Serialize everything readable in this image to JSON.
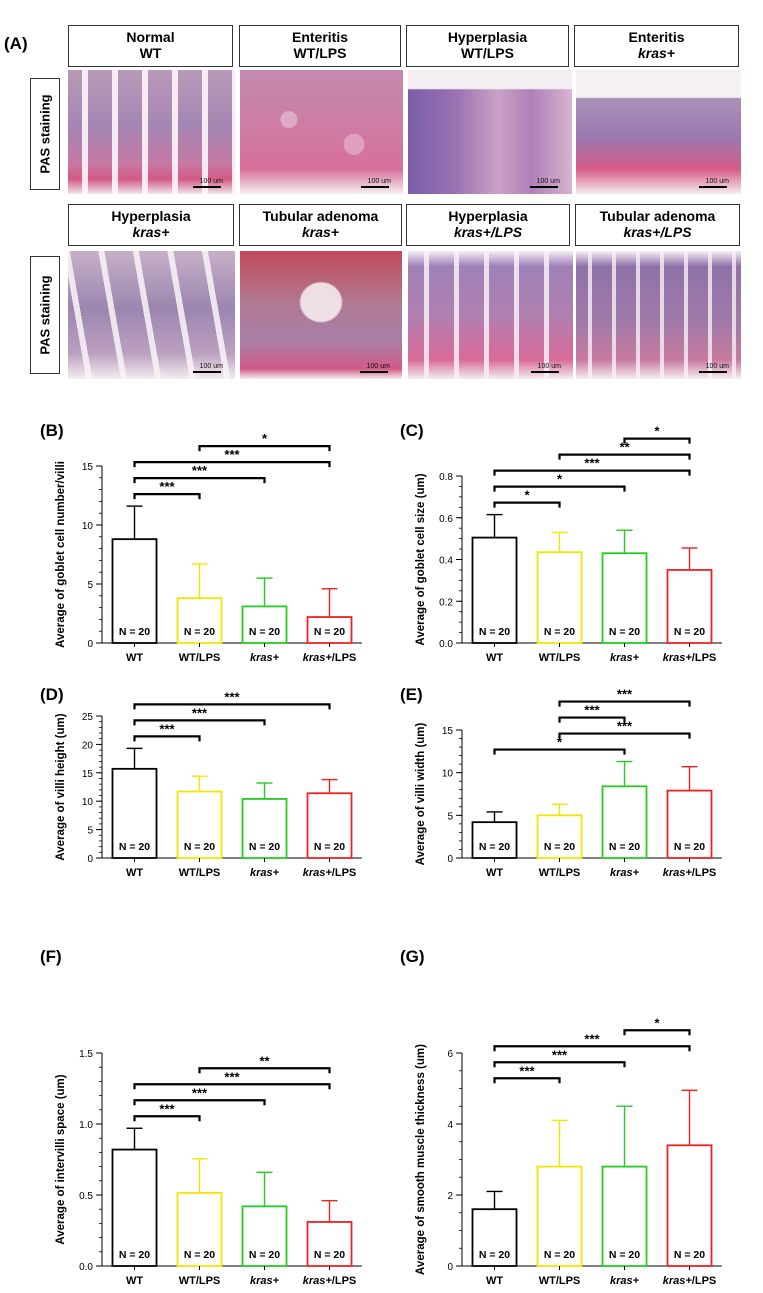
{
  "panel_a": {
    "letter": "(A)",
    "row_label": "PAS staining",
    "row1": [
      {
        "line1": "Normal",
        "line2": "WT",
        "italic2": false
      },
      {
        "line1": "Enteritis",
        "line2": "WT/LPS",
        "italic2": false
      },
      {
        "line1": "Hyperplasia",
        "line2": "WT/LPS",
        "italic2": false
      },
      {
        "line1": "Enteritis",
        "line2": "kras+",
        "italic2": true
      }
    ],
    "row2": [
      {
        "line1": "Hyperplasia",
        "line2": "kras+",
        "italic2": true
      },
      {
        "line1": "Tubular adenoma",
        "line2": "kras+",
        "italic2": true
      },
      {
        "line1": "Hyperplasia",
        "line2": "kras+/LPS",
        "italic2": true
      },
      {
        "line1": "Tubular adenoma",
        "line2": "kras+/LPS",
        "italic2": true
      }
    ],
    "scale_bar": "100 um"
  },
  "chart_data": [
    {
      "type": "bar",
      "letter": "(B)",
      "categories": [
        "WT",
        "WT/LPS",
        "kras+",
        "kras+/LPS"
      ],
      "values": [
        8.8,
        3.8,
        3.1,
        2.2
      ],
      "errors": [
        2.8,
        2.9,
        2.4,
        2.4
      ],
      "n_labels": [
        "N = 20",
        "N = 20",
        "N = 20",
        "N = 20"
      ],
      "colors": [
        "#000000",
        "#f2e600",
        "#22cc22",
        "#ee2222"
      ],
      "ylabel": "Average of goblet cell number/villi",
      "ylim": [
        0,
        15
      ],
      "yticks": [
        "0",
        "5",
        "10",
        "15"
      ],
      "minor_step": 1,
      "significance": [
        {
          "from": 0,
          "to": 1,
          "label": "***"
        },
        {
          "from": 0,
          "to": 2,
          "label": "***"
        },
        {
          "from": 0,
          "to": 3,
          "label": "***"
        },
        {
          "from": 1,
          "to": 3,
          "label": "*"
        }
      ]
    },
    {
      "type": "bar",
      "letter": "(C)",
      "categories": [
        "WT",
        "WT/LPS",
        "kras+",
        "kras+/LPS"
      ],
      "values": [
        0.505,
        0.435,
        0.43,
        0.35
      ],
      "errors": [
        0.11,
        0.095,
        0.11,
        0.105
      ],
      "n_labels": [
        "N = 20",
        "N = 20",
        "N = 20",
        "N = 20"
      ],
      "colors": [
        "#000000",
        "#f2e600",
        "#22cc22",
        "#ee2222"
      ],
      "ylabel": "Average of goblet cell    size (um)",
      "ylim": [
        0,
        0.8
      ],
      "yticks": [
        "0.0",
        "0.2",
        "0.4",
        "0.6",
        "0.8"
      ],
      "minor_step": 0.05,
      "significance": [
        {
          "from": 0,
          "to": 1,
          "label": "*"
        },
        {
          "from": 0,
          "to": 2,
          "label": "*"
        },
        {
          "from": 0,
          "to": 3,
          "label": "***"
        },
        {
          "from": 1,
          "to": 3,
          "label": "**"
        },
        {
          "from": 2,
          "to": 3,
          "label": "*"
        }
      ]
    },
    {
      "type": "bar",
      "letter": "(D)",
      "categories": [
        "WT",
        "WT/LPS",
        "kras+",
        "kras+/LPS"
      ],
      "values": [
        15.7,
        11.7,
        10.4,
        11.4
      ],
      "errors": [
        3.6,
        2.7,
        2.8,
        2.4
      ],
      "n_labels": [
        "N = 20",
        "N = 20",
        "N = 20",
        "N = 20"
      ],
      "colors": [
        "#000000",
        "#f2e600",
        "#22cc22",
        "#ee2222"
      ],
      "ylabel": "Average of villi height (um)",
      "ylim": [
        0,
        25
      ],
      "yticks": [
        "0",
        "5",
        "10",
        "15",
        "20",
        "25"
      ],
      "minor_step": 1,
      "significance": [
        {
          "from": 0,
          "to": 1,
          "label": "***"
        },
        {
          "from": 0,
          "to": 2,
          "label": "***"
        },
        {
          "from": 0,
          "to": 3,
          "label": "***"
        }
      ]
    },
    {
      "type": "bar",
      "letter": "(E)",
      "categories": [
        "WT",
        "WT/LPS",
        "kras+",
        "kras+/LPS"
      ],
      "values": [
        4.2,
        5.0,
        8.4,
        7.9
      ],
      "errors": [
        1.2,
        1.3,
        2.9,
        2.8
      ],
      "n_labels": [
        "N = 20",
        "N = 20",
        "N = 20",
        "N = 20"
      ],
      "colors": [
        "#000000",
        "#f2e600",
        "#22cc22",
        "#ee2222"
      ],
      "ylabel": "Average of villi width (um)",
      "ylim": [
        0,
        15
      ],
      "yticks": [
        "0",
        "5",
        "10",
        "15"
      ],
      "minor_step": 1,
      "significance": [
        {
          "from": 0,
          "to": 2,
          "label": "*"
        },
        {
          "from": 1,
          "to": 3,
          "label": "***"
        },
        {
          "from": 1,
          "to": 2,
          "label": "***"
        },
        {
          "from": 1,
          "to": 3,
          "label": "***"
        }
      ]
    },
    {
      "type": "bar",
      "letter": "(F)",
      "categories": [
        "WT",
        "WT/LPS",
        "kras+",
        "kras+/LPS"
      ],
      "values": [
        0.82,
        0.515,
        0.42,
        0.31
      ],
      "errors": [
        0.15,
        0.24,
        0.24,
        0.15
      ],
      "n_labels": [
        "N = 20",
        "N = 20",
        "N = 20",
        "N = 20"
      ],
      "colors": [
        "#000000",
        "#f2e600",
        "#22cc22",
        "#ee2222"
      ],
      "ylabel": "Average of  intervilli space (um)",
      "ylim": [
        0,
        1.5
      ],
      "yticks": [
        "0.0",
        "0.5",
        "1.0",
        "1.5"
      ],
      "minor_step": 0.1,
      "significance": [
        {
          "from": 0,
          "to": 1,
          "label": "***"
        },
        {
          "from": 0,
          "to": 2,
          "label": "***"
        },
        {
          "from": 0,
          "to": 3,
          "label": "***"
        },
        {
          "from": 1,
          "to": 3,
          "label": "**"
        }
      ]
    },
    {
      "type": "bar",
      "letter": "(G)",
      "categories": [
        "WT",
        "WT/LPS",
        "kras+",
        "kras+/LPS"
      ],
      "values": [
        1.6,
        2.8,
        2.8,
        3.4
      ],
      "errors": [
        0.5,
        1.3,
        1.7,
        1.55
      ],
      "n_labels": [
        "N = 20",
        "N = 20",
        "N = 20",
        "N = 20"
      ],
      "colors": [
        "#000000",
        "#f2e600",
        "#22cc22",
        "#ee2222"
      ],
      "ylabel": "Average of smooth muscle thickness (um)",
      "ylim": [
        0,
        6
      ],
      "yticks": [
        "0",
        "2",
        "4",
        "6"
      ],
      "minor_step": 0.5,
      "significance": [
        {
          "from": 0,
          "to": 1,
          "label": "***"
        },
        {
          "from": 0,
          "to": 2,
          "label": "***"
        },
        {
          "from": 0,
          "to": 3,
          "label": "***"
        },
        {
          "from": 2,
          "to": 3,
          "label": "*"
        }
      ]
    }
  ]
}
